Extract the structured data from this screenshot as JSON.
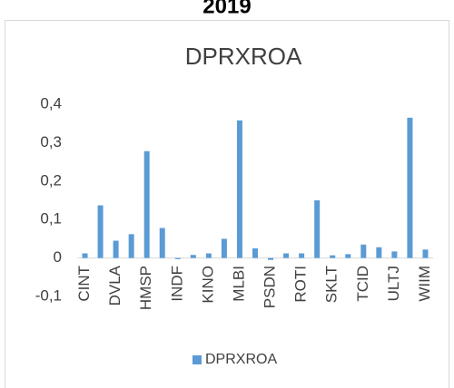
{
  "chart_data": {
    "type": "bar",
    "suptitle": "2019",
    "title": "DPRXROA",
    "categories": [
      "CINT",
      null,
      "DVLA",
      null,
      "HMSP",
      null,
      "INDF",
      null,
      "KINO",
      null,
      "MLBI",
      null,
      "PSDN",
      null,
      "ROTI",
      null,
      "SKLT",
      null,
      "TCID",
      null,
      "ULTJ",
      null,
      "WIIM"
    ],
    "series": [
      {
        "name": "DPRXROA",
        "color": "#5b9bd5",
        "values": [
          0.012,
          0.137,
          0.045,
          0.062,
          0.278,
          0.078,
          -0.003,
          0.008,
          0.012,
          0.05,
          0.358,
          0.025,
          -0.005,
          0.012,
          0.012,
          0.15,
          0.007,
          0.01,
          0.035,
          0.028,
          0.017,
          0.365,
          0.022
        ]
      }
    ],
    "ylim": [
      -0.1,
      0.4
    ],
    "yticks": [
      {
        "value": -0.1,
        "label": "-0,1"
      },
      0,
      {
        "value": 0.1,
        "label": "0,1"
      },
      {
        "value": 0.2,
        "label": "0,2"
      },
      {
        "value": 0.3,
        "label": "0,3"
      },
      {
        "value": 0.4,
        "label": "0,4"
      }
    ],
    "grid": false,
    "legend": "bottom"
  }
}
